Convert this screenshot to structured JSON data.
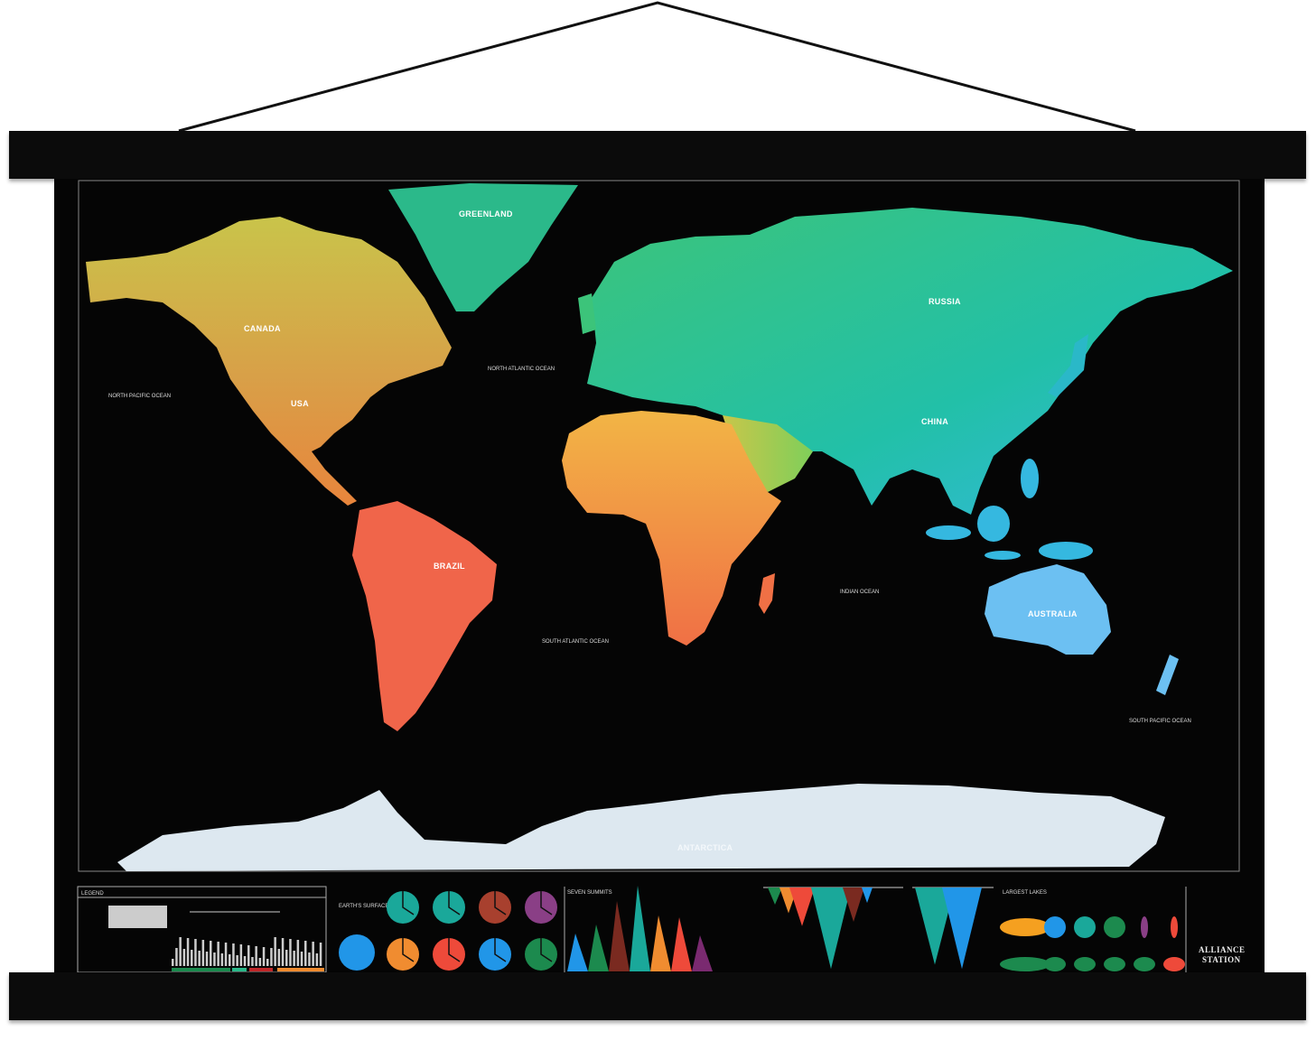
{
  "map": {
    "countries": {
      "greenland": "GREENLAND",
      "canada": "CANADA",
      "usa": "USA",
      "russia": "RUSSIA",
      "china": "CHINA",
      "brazil": "BRAZIL",
      "australia": "AUSTRALIA",
      "antarctica": "ANTARCTICA"
    },
    "oceans": {
      "north_pacific": "NORTH PACIFIC OCEAN",
      "north_atlantic": "NORTH ATLANTIC OCEAN",
      "south_atlantic": "SOUTH ATLANTIC OCEAN",
      "indian": "INDIAN OCEAN",
      "south_pacific": "SOUTH PACIFIC OCEAN"
    },
    "colors": {
      "background": "#050505",
      "north_america_top": "#c9c44a",
      "north_america_bottom": "#e8853c",
      "south_america": "#f0654a",
      "greenland": "#2bb98a",
      "eurasia_west": "#3cc47a",
      "eurasia_east": "#22c0a8",
      "southeast_asia": "#35b8e0",
      "africa_top": "#f2b545",
      "africa_bottom": "#f07045",
      "australia": "#6cc0f2",
      "antarctica": "#dde8f0"
    }
  },
  "infographics": {
    "legend_title": "LEGEND",
    "earths_surface_title": "EARTH'S SURFACE",
    "seven_summits_title": "SEVEN SUMMITS",
    "largest_lakes_title": "LARGEST LAKES",
    "pie_colors": [
      "#1aa89a",
      "#1aa89a",
      "#a8402e",
      "#8a3f86",
      "#f08c30",
      "#ee4a3a",
      "#2196e8",
      "#1c8a4e"
    ],
    "earth_pie_color": "#2196e8",
    "summit_colors": [
      "#2196e8",
      "#1c8a4e",
      "#7a2a20",
      "#1aa89a",
      "#f08c30",
      "#ee4a3a",
      "#7a2a70"
    ],
    "trench_colors": [
      "#1c8a4e",
      "#f08c30",
      "#ee4a3a",
      "#1aa89a",
      "#7a2a20",
      "#2196e8",
      "#1aa89a",
      "#2196e8"
    ],
    "lake_colors": [
      "#f5a020",
      "#2196e8",
      "#1aa89a",
      "#1c8a4e",
      "#8a3f86",
      "#ee4a3a"
    ]
  },
  "brand": {
    "line1": "ALLIANCE",
    "line2": "STATION"
  }
}
